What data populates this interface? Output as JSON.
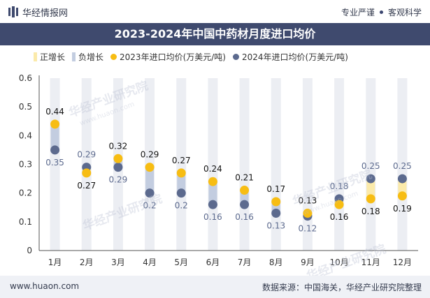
{
  "header": {
    "brand": "华经情报网",
    "slogan_left": "专业严谨",
    "slogan_right": "客观科学"
  },
  "legend": {
    "items": [
      "正增长",
      "负增长",
      "2023年进口均价(万美元/吨)",
      "2024年进口均价(万美元/吨)"
    ]
  },
  "footer": {
    "url": "www.huaon.com",
    "source": "数据来源：中国海关，华经产业研究院整理"
  },
  "watermark": {
    "text": "华经产业研究院",
    "sub": "www.huaon.com"
  },
  "colors": {
    "title_bg": "#3f4a6e",
    "positive_band": "#fbeaaa",
    "negative_band": "#c3cde0",
    "series_2023": "#f7bd13",
    "series_2024": "#5c6a8e",
    "track": "#eceef3"
  },
  "chart_data": {
    "type": "scatter",
    "title": "2023-2024年中国中药材月度进口均价",
    "categories": [
      "1月",
      "2月",
      "3月",
      "4月",
      "5月",
      "6月",
      "7月",
      "8月",
      "9月",
      "10月",
      "11月",
      "12月"
    ],
    "series": [
      {
        "name": "2023年进口均价(万美元/吨)",
        "values": [
          0.44,
          0.27,
          0.32,
          0.29,
          0.27,
          0.24,
          0.21,
          0.17,
          0.13,
          0.16,
          0.18,
          0.19
        ]
      },
      {
        "name": "2024年进口均价(万美元/吨)",
        "values": [
          0.35,
          0.29,
          0.29,
          0.2,
          0.2,
          0.16,
          0.16,
          0.13,
          0.12,
          0.18,
          0.25,
          0.25
        ]
      }
    ],
    "ylim": [
      0,
      0.6
    ],
    "yticks": [
      "0",
      "0.1",
      "0.2",
      "0.3",
      "0.4",
      "0.5",
      "0.6"
    ],
    "xlabel": "",
    "ylabel": ""
  }
}
